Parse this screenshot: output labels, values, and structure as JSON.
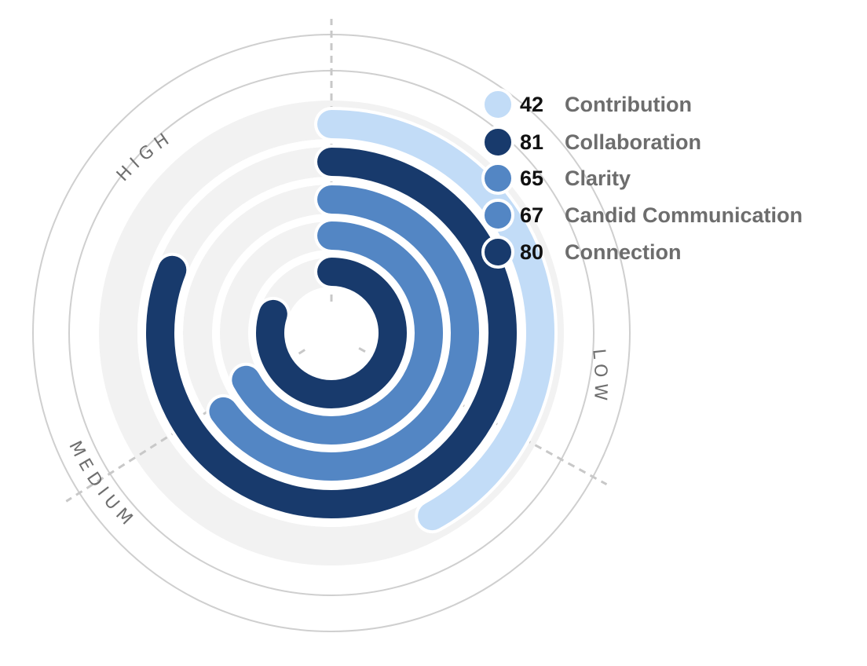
{
  "chart_data": {
    "type": "radial-bar",
    "scale": {
      "min": 0,
      "max": 100,
      "direction": "clockwise",
      "start": "top"
    },
    "zones": [
      {
        "label": "LOW",
        "from": 0,
        "to": 33
      },
      {
        "label": "MEDIUM",
        "from": 33,
        "to": 66
      },
      {
        "label": "HIGH",
        "from": 66,
        "to": 100
      }
    ],
    "series": [
      {
        "name": "Contribution",
        "value": 42,
        "color": "#c2dcf7"
      },
      {
        "name": "Collaboration",
        "value": 81,
        "color": "#183a6c"
      },
      {
        "name": "Clarity",
        "value": 65,
        "color": "#5386c4"
      },
      {
        "name": "Candid Communication",
        "value": 67,
        "color": "#5386c4"
      },
      {
        "name": "Connection",
        "value": 80,
        "color": "#183a6c"
      }
    ]
  },
  "colors": {
    "track": "#f2f2f2",
    "grid": "#cfcfcf",
    "divider": "#c8c8c8",
    "label": "#6e6e6e"
  }
}
